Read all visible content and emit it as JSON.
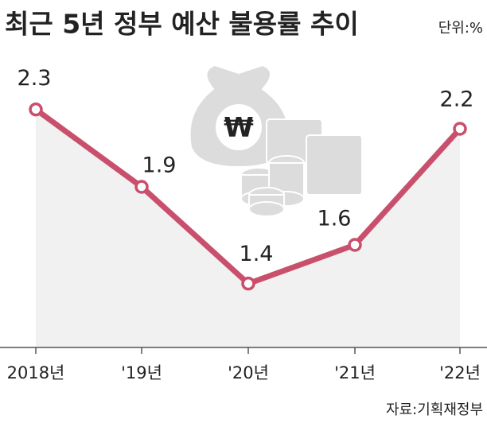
{
  "chart_data": {
    "type": "line",
    "title": "최근 5년 정부 예산 불용률 추이",
    "unit": "단위:%",
    "source": "자료:기획재정부",
    "categories": [
      "2018년",
      "'19년",
      "'20년",
      "'21년",
      "'22년"
    ],
    "series": [
      {
        "name": "불용률",
        "color": "#c9506c",
        "values": [
          2.3,
          1.9,
          1.4,
          1.6,
          2.2
        ]
      }
    ],
    "ylim": [
      1,
      2.5
    ]
  }
}
